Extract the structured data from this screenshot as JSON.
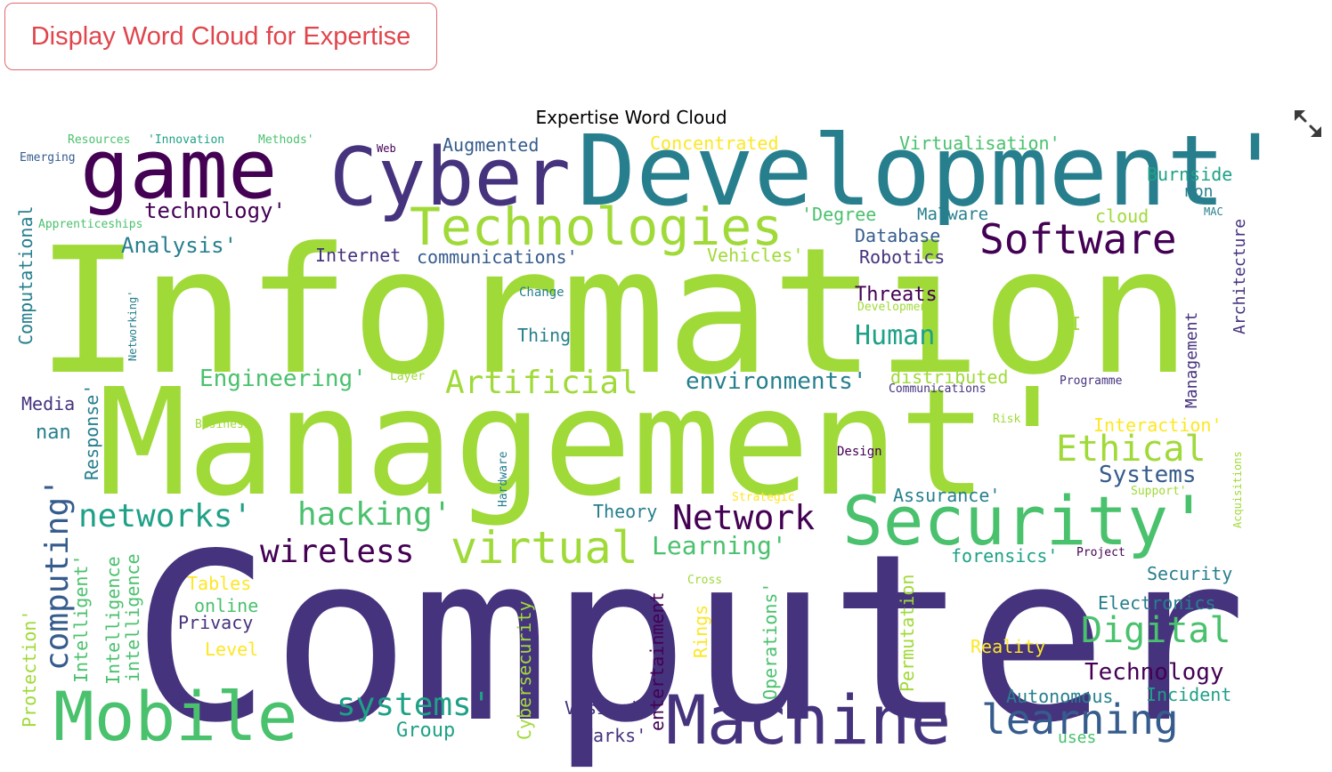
{
  "button": {
    "label": "Display Word Cloud for Expertise"
  },
  "chart": {
    "title": "Expertise Word Cloud",
    "expand_icon": "expand-icon",
    "palette": [
      "#440154",
      "#46337e",
      "#365c8d",
      "#277f8e",
      "#1fa187",
      "#4ac16d",
      "#a0da39",
      "#fde725"
    ]
  },
  "chart_data": {
    "type": "wordcloud",
    "words": [
      {
        "text": "Information",
        "color": "#a0da39"
      },
      {
        "text": "Management'",
        "color": "#a0da39"
      },
      {
        "text": "Computer",
        "color": "#46337e"
      },
      {
        "text": "Development'",
        "color": "#277f8e"
      },
      {
        "text": "Cyber",
        "color": "#46337e"
      },
      {
        "text": "game",
        "color": "#440154"
      },
      {
        "text": "Security'",
        "color": "#4ac16d"
      },
      {
        "text": "Machine",
        "color": "#46337e"
      },
      {
        "text": "Mobile",
        "color": "#4ac16d"
      },
      {
        "text": "Technologies",
        "color": "#a0da39"
      },
      {
        "text": "Software",
        "color": "#440154"
      },
      {
        "text": "learning",
        "color": "#365c8d"
      },
      {
        "text": "virtual",
        "color": "#a0da39"
      },
      {
        "text": "Network",
        "color": "#440154"
      },
      {
        "text": "networks'",
        "color": "#1fa187"
      },
      {
        "text": "hacking'",
        "color": "#4ac16d"
      },
      {
        "text": "wireless",
        "color": "#440154"
      },
      {
        "text": "computing'",
        "color": "#365c8d"
      },
      {
        "text": "Ethical",
        "color": "#a0da39"
      },
      {
        "text": "Digital",
        "color": "#4ac16d"
      },
      {
        "text": "Artificial",
        "color": "#a0da39"
      },
      {
        "text": "systems'",
        "color": "#1fa187"
      },
      {
        "text": "Learning'",
        "color": "#4ac16d"
      },
      {
        "text": "Human",
        "color": "#1fa187"
      },
      {
        "text": "Systems",
        "color": "#365c8d"
      },
      {
        "text": "Technology",
        "color": "#440154"
      },
      {
        "text": "environments'",
        "color": "#277f8e"
      },
      {
        "text": "Engineering'",
        "color": "#4ac16d"
      },
      {
        "text": "technology'",
        "color": "#440154"
      },
      {
        "text": "Analysis'",
        "color": "#277f8e"
      },
      {
        "text": "Augmented",
        "color": "#365c8d"
      },
      {
        "text": "Concentrated",
        "color": "#fde725"
      },
      {
        "text": "Virtualisation'",
        "color": "#4ac16d"
      },
      {
        "text": "Burnside",
        "color": "#1fa187"
      },
      {
        "text": "non",
        "color": "#277f8e"
      },
      {
        "text": "MAC",
        "color": "#277f8e"
      },
      {
        "text": "Architecture",
        "color": "#46337e"
      },
      {
        "text": "cloud",
        "color": "#a0da39"
      },
      {
        "text": "Malware",
        "color": "#277f8e"
      },
      {
        "text": "'Degree",
        "color": "#4ac16d"
      },
      {
        "text": "Database",
        "color": "#365c8d"
      },
      {
        "text": "Robotics",
        "color": "#46337e"
      },
      {
        "text": "Vehicles'",
        "color": "#a0da39"
      },
      {
        "text": "communications'",
        "color": "#365c8d"
      },
      {
        "text": "Internet",
        "color": "#46337e"
      },
      {
        "text": "Threats",
        "color": "#440154"
      },
      {
        "text": "Development",
        "color": "#a0da39"
      },
      {
        "text": "AI",
        "color": "#a0da39"
      },
      {
        "text": "Thing",
        "color": "#277f8e"
      },
      {
        "text": "Change",
        "color": "#277f8e"
      },
      {
        "text": "Computational",
        "color": "#277f8e"
      },
      {
        "text": "Networking'",
        "color": "#277f8e"
      },
      {
        "text": "Apprenticeships",
        "color": "#4ac16d"
      },
      {
        "text": "Emerging",
        "color": "#365c8d"
      },
      {
        "text": "Resources",
        "color": "#4ac16d"
      },
      {
        "text": "'Innovation",
        "color": "#1fa187"
      },
      {
        "text": "Methods'",
        "color": "#4ac16d"
      },
      {
        "text": "Web",
        "color": "#440154"
      },
      {
        "text": "distributed",
        "color": "#a0da39"
      },
      {
        "text": "Communications",
        "color": "#46337e"
      },
      {
        "text": "Programme",
        "color": "#46337e"
      },
      {
        "text": "Management",
        "color": "#46337e"
      },
      {
        "text": "Interaction'",
        "color": "#fde725"
      },
      {
        "text": "Risk",
        "color": "#a0da39"
      },
      {
        "text": "Design",
        "color": "#440154"
      },
      {
        "text": "Acquisitions",
        "color": "#a0da39"
      },
      {
        "text": "Support'",
        "color": "#a0da39"
      },
      {
        "text": "Strategic",
        "color": "#fde725"
      },
      {
        "text": "Assurance'",
        "color": "#277f8e"
      },
      {
        "text": "Theory",
        "color": "#277f8e"
      },
      {
        "text": "forensics'",
        "color": "#1fa187"
      },
      {
        "text": "Project",
        "color": "#440154"
      },
      {
        "text": "Security",
        "color": "#277f8e"
      },
      {
        "text": "Electronics",
        "color": "#277f8e"
      },
      {
        "text": "Reality",
        "color": "#fde725"
      },
      {
        "text": "Permutation",
        "color": "#a0da39"
      },
      {
        "text": "Autonomous",
        "color": "#277f8e"
      },
      {
        "text": "Incident",
        "color": "#1fa187"
      },
      {
        "text": "uses",
        "color": "#4ac16d"
      },
      {
        "text": "Cross",
        "color": "#a0da39"
      },
      {
        "text": "Rings",
        "color": "#fde725"
      },
      {
        "text": "Operations'",
        "color": "#4ac16d"
      },
      {
        "text": "entertainment",
        "color": "#440154"
      },
      {
        "text": "Vision'",
        "color": "#46337e"
      },
      {
        "text": "Marks'",
        "color": "#46337e"
      },
      {
        "text": "Cybersecurity",
        "color": "#a0da39"
      },
      {
        "text": "Hardware",
        "color": "#277f8e"
      },
      {
        "text": "Group",
        "color": "#1fa187"
      },
      {
        "text": "Privacy",
        "color": "#46337e"
      },
      {
        "text": "online",
        "color": "#4ac16d"
      },
      {
        "text": "Tables",
        "color": "#fde725"
      },
      {
        "text": "Level",
        "color": "#fde725"
      },
      {
        "text": "Intelligence",
        "color": "#4ac16d"
      },
      {
        "text": "intelligence",
        "color": "#4ac16d"
      },
      {
        "text": "Intelligent'",
        "color": "#4ac16d"
      },
      {
        "text": "Protection'",
        "color": "#a0da39"
      },
      {
        "text": "Response'",
        "color": "#277f8e"
      },
      {
        "text": "Media",
        "color": "#46337e"
      },
      {
        "text": "nan",
        "color": "#277f8e"
      },
      {
        "text": "Business",
        "color": "#a0da39"
      },
      {
        "text": "Layer",
        "color": "#a0da39"
      }
    ]
  }
}
